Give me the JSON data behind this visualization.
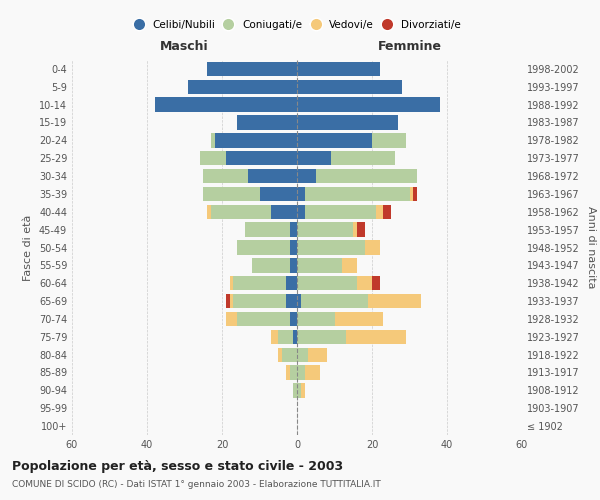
{
  "age_groups": [
    "100+",
    "95-99",
    "90-94",
    "85-89",
    "80-84",
    "75-79",
    "70-74",
    "65-69",
    "60-64",
    "55-59",
    "50-54",
    "45-49",
    "40-44",
    "35-39",
    "30-34",
    "25-29",
    "20-24",
    "15-19",
    "10-14",
    "5-9",
    "0-4"
  ],
  "birth_years": [
    "≤ 1902",
    "1903-1907",
    "1908-1912",
    "1913-1917",
    "1918-1922",
    "1923-1927",
    "1928-1932",
    "1933-1937",
    "1938-1942",
    "1943-1947",
    "1948-1952",
    "1953-1957",
    "1958-1962",
    "1963-1967",
    "1968-1972",
    "1973-1977",
    "1978-1982",
    "1983-1987",
    "1988-1992",
    "1993-1997",
    "1998-2002"
  ],
  "maschi": {
    "celibe": [
      0,
      0,
      0,
      0,
      0,
      1,
      2,
      3,
      3,
      2,
      2,
      2,
      7,
      10,
      13,
      19,
      22,
      16,
      38,
      29,
      24
    ],
    "coniugato": [
      0,
      0,
      1,
      2,
      4,
      4,
      14,
      14,
      14,
      10,
      14,
      12,
      16,
      15,
      12,
      7,
      1,
      0,
      0,
      0,
      0
    ],
    "vedovo": [
      0,
      0,
      0,
      1,
      1,
      2,
      3,
      1,
      1,
      0,
      0,
      0,
      1,
      0,
      0,
      0,
      0,
      0,
      0,
      0,
      0
    ],
    "divorziato": [
      0,
      0,
      0,
      0,
      0,
      0,
      0,
      1,
      0,
      0,
      0,
      0,
      0,
      0,
      0,
      0,
      0,
      0,
      0,
      0,
      0
    ]
  },
  "femmine": {
    "nubile": [
      0,
      0,
      0,
      0,
      0,
      0,
      0,
      1,
      0,
      0,
      0,
      0,
      2,
      2,
      5,
      9,
      20,
      27,
      38,
      28,
      22
    ],
    "coniugata": [
      0,
      0,
      1,
      2,
      3,
      13,
      10,
      18,
      16,
      12,
      18,
      15,
      19,
      28,
      27,
      17,
      9,
      0,
      0,
      0,
      0
    ],
    "vedova": [
      0,
      0,
      1,
      4,
      5,
      16,
      13,
      14,
      4,
      4,
      4,
      1,
      2,
      1,
      0,
      0,
      0,
      0,
      0,
      0,
      0
    ],
    "divorziata": [
      0,
      0,
      0,
      0,
      0,
      0,
      0,
      0,
      2,
      0,
      0,
      2,
      2,
      1,
      0,
      0,
      0,
      0,
      0,
      0,
      0
    ]
  },
  "colors": {
    "celibe": "#3a6ea5",
    "coniugato": "#b5cfa0",
    "vedovo": "#f5c97a",
    "divorziato": "#c0392b"
  },
  "xlim": 60,
  "title": "Popolazione per età, sesso e stato civile - 2003",
  "subtitle": "COMUNE DI SCIDO (RC) - Dati ISTAT 1° gennaio 2003 - Elaborazione TUTTITALIA.IT",
  "ylabel_left": "Fasce di età",
  "ylabel_right": "Anni di nascita",
  "xlabel_maschi": "Maschi",
  "xlabel_femmine": "Femmine",
  "legend_labels": [
    "Celibi/Nubili",
    "Coniugati/e",
    "Vedovi/e",
    "Divorziati/e"
  ]
}
